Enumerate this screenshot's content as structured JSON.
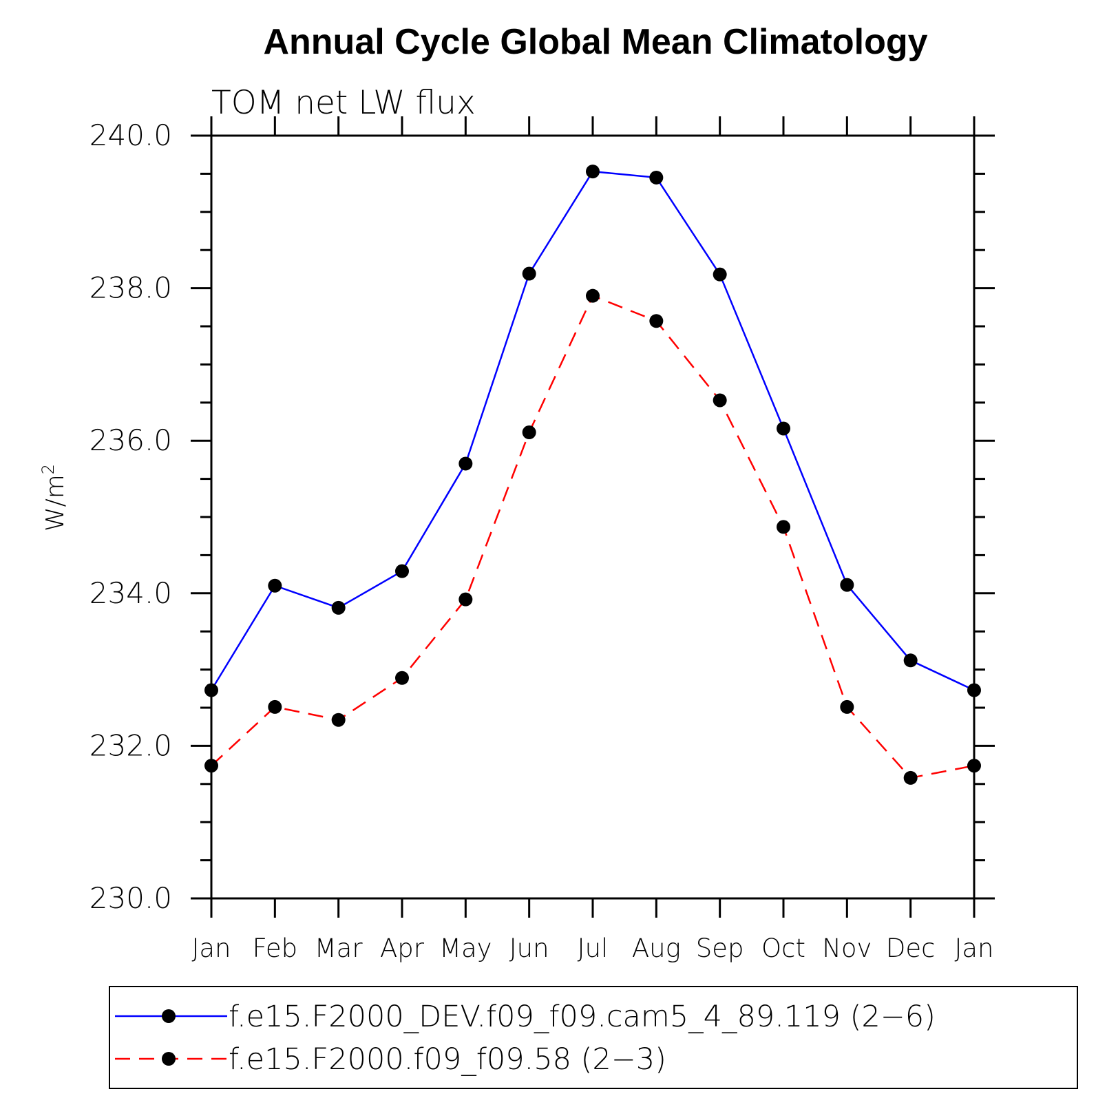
{
  "chart_data": {
    "type": "line",
    "title": "Annual Cycle Global Mean Climatology",
    "subtitle": "TOM net LW flux",
    "ylabel": "W/m",
    "ylabel_superscript": "2",
    "xlabel": "",
    "categories": [
      "Jan",
      "Feb",
      "Mar",
      "Apr",
      "May",
      "Jun",
      "Jul",
      "Aug",
      "Sep",
      "Oct",
      "Nov",
      "Dec",
      "Jan"
    ],
    "ylim": [
      230.0,
      240.0
    ],
    "yticks": [
      "230.0",
      "232.0",
      "234.0",
      "236.0",
      "238.0",
      "240.0"
    ],
    "grid": false,
    "legend_position": "bottom",
    "series": [
      {
        "name": "f.e15.F2000_DEV.f09_f09.cam5_4_89.119 (2−6)",
        "color": "#0000ff",
        "dash": "solid",
        "marker": "filled-circle",
        "values": [
          232.73,
          234.1,
          233.81,
          234.29,
          235.7,
          238.19,
          239.53,
          239.45,
          238.18,
          236.16,
          234.11,
          233.12,
          232.73
        ]
      },
      {
        "name": "f.e15.F2000.f09_f09.58 (2−3)",
        "color": "#ff0000",
        "dash": "dashed",
        "marker": "filled-circle",
        "values": [
          231.74,
          232.51,
          232.34,
          232.89,
          233.92,
          236.11,
          237.9,
          237.57,
          236.53,
          234.87,
          232.51,
          231.58,
          231.74
        ]
      }
    ]
  }
}
